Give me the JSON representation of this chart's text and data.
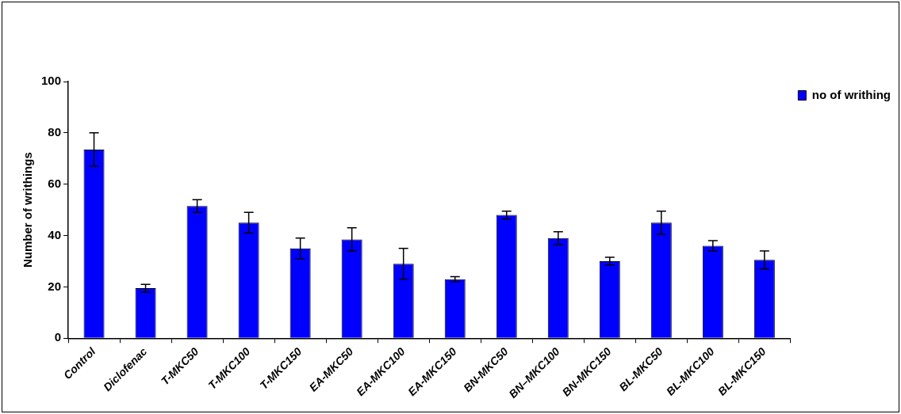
{
  "chart_data": {
    "type": "bar",
    "ylabel": "Number of writhings",
    "categories": [
      "Control",
      "Diclofenac",
      "T-MKC50",
      "T-MKC100",
      "T-MKC150",
      "EA-MKC50",
      "EA-MKC100",
      "EA-MKC150",
      "BN-MKC50",
      "BN–MKC100",
      "BN-MKC150",
      "BL-MKC50",
      "BL-MKC100",
      "BL-MKC150"
    ],
    "series": [
      {
        "name": "no of writhing",
        "color": "#0000ff",
        "values": [
          73.5,
          19.5,
          51.5,
          45,
          35,
          38.5,
          29,
          23,
          48,
          39,
          30,
          45,
          36,
          30.5
        ],
        "errors": [
          6.5,
          1.5,
          2.5,
          4,
          4,
          4.5,
          6,
          1,
          1.5,
          2.5,
          1.5,
          4.5,
          2,
          3.5
        ]
      }
    ],
    "ylim": [
      0,
      100
    ],
    "yticks": [
      0,
      20,
      40,
      60,
      80,
      100
    ],
    "grid": false,
    "legend": "right"
  }
}
